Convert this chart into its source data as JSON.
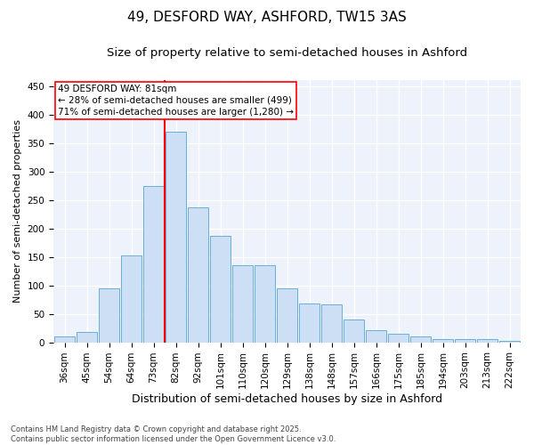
{
  "title": "49, DESFORD WAY, ASHFORD, TW15 3AS",
  "subtitle": "Size of property relative to semi-detached houses in Ashford",
  "xlabel": "Distribution of semi-detached houses by size in Ashford",
  "ylabel": "Number of semi-detached properties",
  "categories": [
    "36sqm",
    "45sqm",
    "54sqm",
    "64sqm",
    "73sqm",
    "82sqm",
    "92sqm",
    "101sqm",
    "110sqm",
    "120sqm",
    "129sqm",
    "138sqm",
    "148sqm",
    "157sqm",
    "166sqm",
    "175sqm",
    "185sqm",
    "194sqm",
    "203sqm",
    "213sqm",
    "222sqm"
  ],
  "values": [
    10,
    18,
    95,
    153,
    275,
    370,
    237,
    187,
    135,
    135,
    95,
    68,
    67,
    40,
    22,
    15,
    10,
    5,
    5,
    5,
    3
  ],
  "bar_color": "#ccdff5",
  "bar_edge_color": "#6baed6",
  "vline_color": "red",
  "vline_index": 5,
  "annotation_text": "49 DESFORD WAY: 81sqm\n← 28% of semi-detached houses are smaller (499)\n71% of semi-detached houses are larger (1,280) →",
  "annotation_box_color": "white",
  "annotation_box_edge_color": "red",
  "ylim": [
    0,
    460
  ],
  "yticks": [
    0,
    50,
    100,
    150,
    200,
    250,
    300,
    350,
    400,
    450
  ],
  "background_color": "#eef2fb",
  "grid_color": "white",
  "footnote": "Contains HM Land Registry data © Crown copyright and database right 2025.\nContains public sector information licensed under the Open Government Licence v3.0.",
  "title_fontsize": 11,
  "subtitle_fontsize": 9.5,
  "xlabel_fontsize": 9,
  "ylabel_fontsize": 8,
  "tick_fontsize": 7.5,
  "annotation_fontsize": 7.5,
  "footnote_fontsize": 6
}
